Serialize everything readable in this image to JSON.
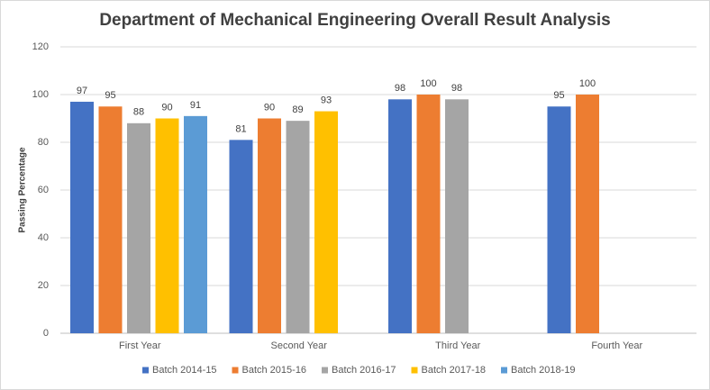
{
  "chart_data": {
    "type": "bar",
    "title": "Department of Mechanical Engineering Overall Result Analysis",
    "y_label": "Passing Percentage",
    "categories": [
      "First Year",
      "Second Year",
      "Third Year",
      "Fourth Year"
    ],
    "series": [
      {
        "name": "Batch 2014-15",
        "color": "#4472c4",
        "values": [
          97,
          81,
          98,
          95
        ]
      },
      {
        "name": "Batch 2015-16",
        "color": "#ed7d31",
        "values": [
          95,
          90,
          100,
          100
        ]
      },
      {
        "name": "Batch 2016-17",
        "color": "#a5a5a5",
        "values": [
          88,
          89,
          98,
          null
        ]
      },
      {
        "name": "Batch 2017-18",
        "color": "#ffc000",
        "values": [
          90,
          93,
          null,
          null
        ]
      },
      {
        "name": "Batch 2018-19",
        "color": "#5b9bd5",
        "values": [
          91,
          null,
          null,
          null
        ]
      }
    ],
    "ylim": [
      0,
      120
    ],
    "yticks": [
      0,
      20,
      40,
      60,
      80,
      100,
      120
    ],
    "grid": true,
    "legend": "bottom"
  }
}
